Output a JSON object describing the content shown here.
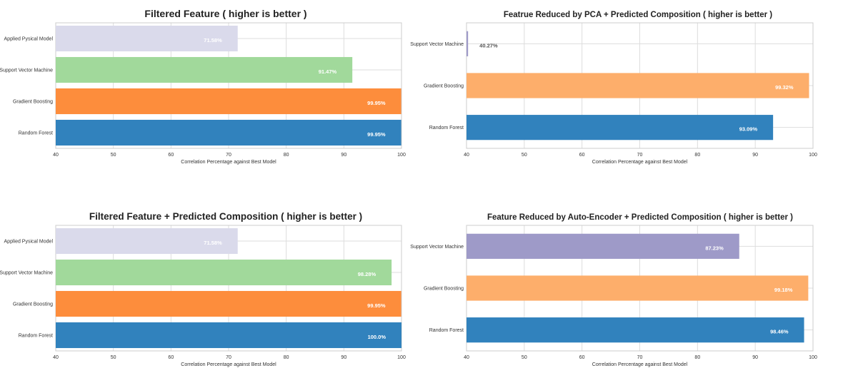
{
  "chart_data": [
    {
      "type": "bar",
      "orientation": "horizontal",
      "title": "Filtered  Feature ( higher is better )",
      "xlabel": "Correlation Percentage against Best Model",
      "xlim": [
        40,
        100
      ],
      "xticks": [
        "40",
        "50",
        "60",
        "70",
        "80",
        "90",
        "100"
      ],
      "grid": true,
      "categories": [
        "Applied Pysical Model",
        "Support Vector Machine",
        "Gradient Boosting",
        "Random Forest"
      ],
      "values": [
        71.58,
        91.47,
        99.95,
        99.95
      ],
      "data_labels": [
        "71.58%",
        "91.47%",
        "99.95%",
        "99.95%"
      ],
      "colors": [
        "#dadaeb",
        "#a1d99b",
        "#fd8d3c",
        "#3182bd"
      ]
    },
    {
      "type": "bar",
      "orientation": "horizontal",
      "title": "Featrue Reduced by PCA + Predicted Composition ( higher is better )",
      "xlabel": "Correlation Percentage against Best Model",
      "xlim": [
        40,
        100
      ],
      "xticks": [
        "40",
        "50",
        "60",
        "70",
        "80",
        "90",
        "100"
      ],
      "grid": true,
      "categories": [
        "Support Vector Machine",
        "Gradient Boosting",
        "Random Forest"
      ],
      "values": [
        40.27,
        99.32,
        93.09
      ],
      "data_labels": [
        "40.27%",
        "99.32%",
        "93.09%"
      ],
      "colors": [
        "#9e9ac8",
        "#fdae6b",
        "#3182bd"
      ]
    },
    {
      "type": "bar",
      "orientation": "horizontal",
      "title": "Filtered  Feature + Predicted Composition ( higher is better )",
      "xlabel": "Correlation Percentage against Best Model",
      "xlim": [
        40,
        100
      ],
      "xticks": [
        "40",
        "50",
        "60",
        "70",
        "80",
        "90",
        "100"
      ],
      "grid": true,
      "categories": [
        "Applied Pysical Model",
        "Support Vector Machine",
        "Gradient Boosting",
        "Random Forest"
      ],
      "values": [
        71.58,
        98.28,
        99.95,
        100.0
      ],
      "data_labels": [
        "71.58%",
        "98.28%",
        "99.95%",
        "100.0%"
      ],
      "colors": [
        "#dadaeb",
        "#a1d99b",
        "#fd8d3c",
        "#3182bd"
      ]
    },
    {
      "type": "bar",
      "orientation": "horizontal",
      "title": "Feature Reduced by Auto-Encoder + Predicted Composition ( higher is better )",
      "xlabel": "Correlation Percentage against Best Model",
      "xlim": [
        40,
        100
      ],
      "xticks": [
        "40",
        "50",
        "60",
        "70",
        "80",
        "90",
        "100"
      ],
      "grid": true,
      "categories": [
        "Support Vector Machine",
        "Gradient Boosting",
        "Random Forest"
      ],
      "values": [
        87.23,
        99.18,
        98.46
      ],
      "data_labels": [
        "87.23%",
        "99.18%",
        "98.46%"
      ],
      "colors": [
        "#9e9ac8",
        "#fdae6b",
        "#3182bd"
      ]
    }
  ]
}
